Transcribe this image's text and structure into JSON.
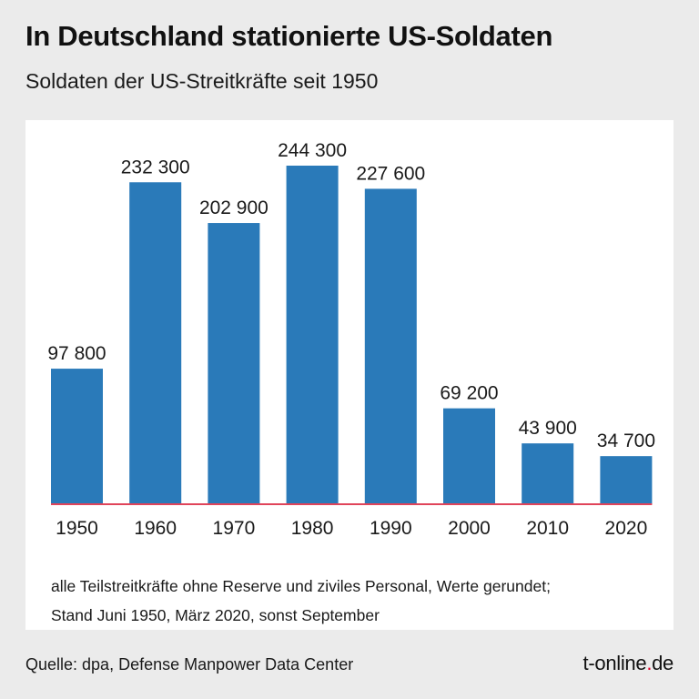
{
  "header": {
    "title": "In Deutschland stationierte US-Soldaten",
    "subtitle": "Soldaten der US-Streitkräfte seit 1950"
  },
  "chart_data": {
    "type": "bar",
    "categories": [
      "1950",
      "1960",
      "1970",
      "1980",
      "1990",
      "2000",
      "2010",
      "2020"
    ],
    "values": [
      97800,
      232300,
      202900,
      244300,
      227600,
      69200,
      43900,
      34700
    ],
    "value_labels": [
      "97 800",
      "232 300",
      "202 900",
      "244 300",
      "227 600",
      "69 200",
      "43 900",
      "34 700"
    ],
    "title": "In Deutschland stationierte US-Soldaten",
    "subtitle": "Soldaten der US-Streitkräfte seit 1950",
    "xlabel": "",
    "ylabel": "",
    "ylim": [
      0,
      244300
    ],
    "grid": false,
    "bar_color": "#2a7ab9",
    "baseline_color": "#e0445a"
  },
  "footnote": {
    "line1": "alle Teilstreitkräfte ohne Reserve und ziviles Personal, Werte gerundet;",
    "line2": "Stand Juni 1950, März 2020, sonst September"
  },
  "footer": {
    "source": "Quelle: dpa, Defense Manpower Data Center",
    "brand_name": "t-online",
    "brand_dot": ".",
    "brand_tld": "de"
  }
}
